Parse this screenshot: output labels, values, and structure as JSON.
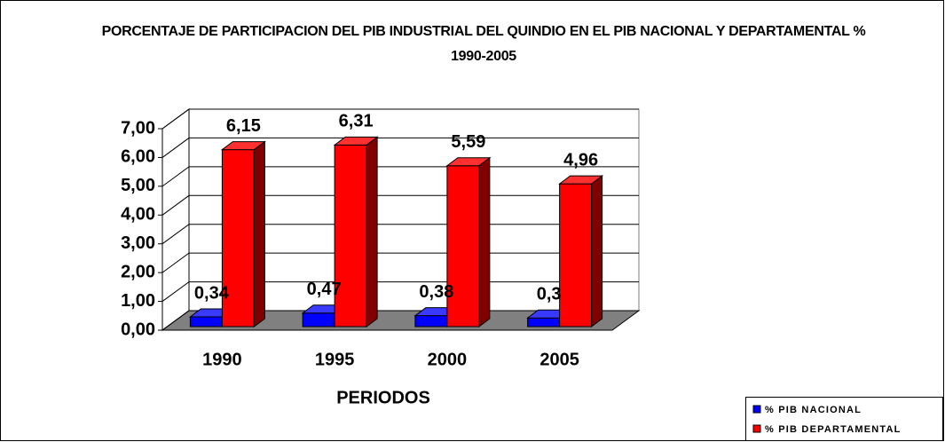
{
  "chart_data": {
    "type": "bar3d",
    "title": "PORCENTAJE DE PARTICIPACION DEL PIB INDUSTRIAL DEL QUINDIO EN EL PIB NACIONAL Y DEPARTAMENTAL % 1990-2005",
    "x_label": "PERIODOS",
    "categories": [
      "1990",
      "1995",
      "2000",
      "2005"
    ],
    "series": [
      {
        "name": "% PIB NACIONAL",
        "color": "#0000ff",
        "values": [
          0.34,
          0.47,
          0.38,
          0.3
        ],
        "value_labels": [
          "0,34",
          "0,47",
          "0,38",
          "0,3"
        ]
      },
      {
        "name": "% PIB DEPARTAMENTAL",
        "color": "#ff0000",
        "values": [
          6.15,
          6.31,
          5.59,
          4.96
        ],
        "value_labels": [
          "6,15",
          "6,31",
          "5,59",
          "4,96"
        ]
      }
    ],
    "ylim": [
      0,
      7
    ],
    "yticks": [
      {
        "value": 0,
        "label": "0,00"
      },
      {
        "value": 1,
        "label": "1,00"
      },
      {
        "value": 2,
        "label": "2,00"
      },
      {
        "value": 3,
        "label": "3,00"
      },
      {
        "value": 4,
        "label": "4,00"
      },
      {
        "value": 5,
        "label": "5,00"
      },
      {
        "value": 6,
        "label": "6,00"
      },
      {
        "value": 7,
        "label": "7,00"
      }
    ],
    "grid": true,
    "legend": "lower right"
  }
}
